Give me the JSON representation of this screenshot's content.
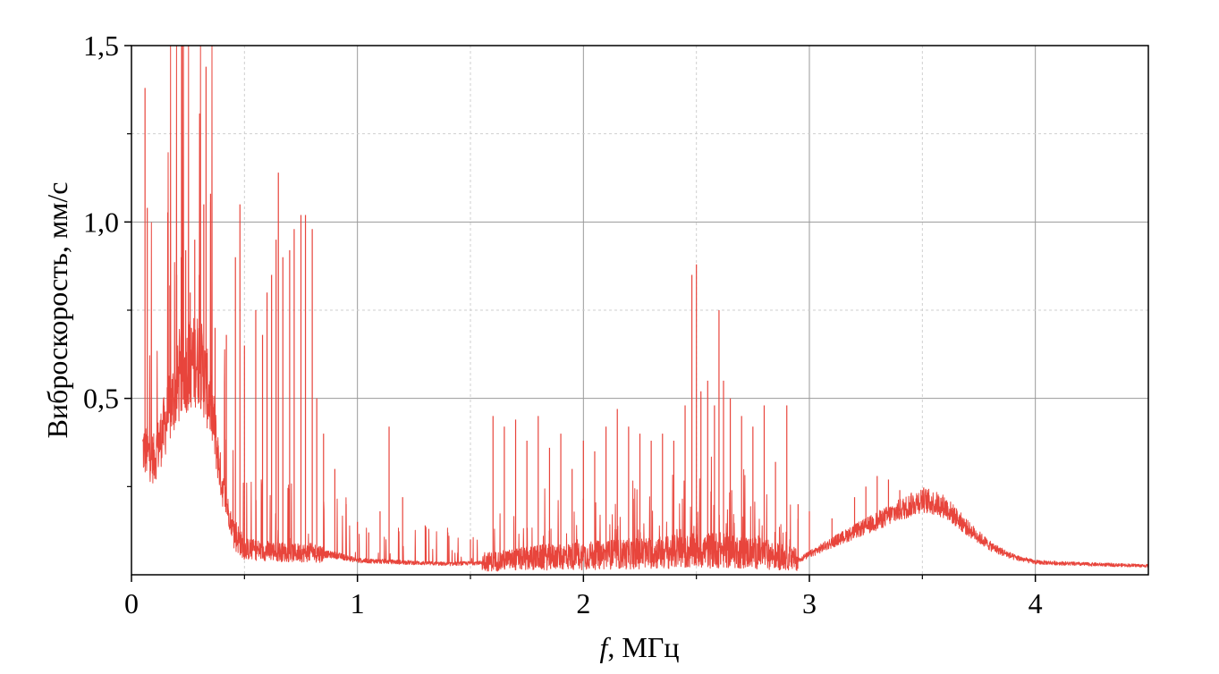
{
  "chart_data": {
    "type": "line",
    "xlabel_italic": "f",
    "xlabel_rest": ", МГц",
    "ylabel": "Виброскорость, мм/с",
    "xlim": [
      0,
      4.5
    ],
    "ylim": [
      0,
      1.5
    ],
    "x_ticks": [
      0,
      1,
      2,
      3,
      4
    ],
    "x_tick_labels": [
      "0",
      "1",
      "2",
      "3",
      "4"
    ],
    "y_ticks": [
      0.5,
      1.0,
      1.5
    ],
    "y_tick_labels": [
      "0,5",
      "1,0",
      "1,5"
    ],
    "grid": true,
    "line_color": "#e8453c",
    "envelope": {
      "x": [
        0.05,
        0.1,
        0.15,
        0.2,
        0.25,
        0.3,
        0.35,
        0.4,
        0.45,
        0.5,
        0.6,
        0.7,
        0.8,
        0.9,
        1.0,
        1.2,
        1.4,
        1.6,
        1.8,
        2.0,
        2.2,
        2.4,
        2.6,
        2.8,
        2.95,
        3.1,
        3.3,
        3.5,
        3.6,
        3.7,
        3.8,
        3.9,
        4.0,
        4.2,
        4.5
      ],
      "y": [
        0.35,
        0.32,
        0.42,
        0.52,
        0.58,
        0.6,
        0.48,
        0.25,
        0.12,
        0.07,
        0.065,
        0.06,
        0.06,
        0.055,
        0.04,
        0.035,
        0.03,
        0.035,
        0.045,
        0.05,
        0.055,
        0.06,
        0.065,
        0.055,
        0.04,
        0.09,
        0.15,
        0.21,
        0.19,
        0.13,
        0.08,
        0.05,
        0.035,
        0.03,
        0.025
      ]
    },
    "peaks": {
      "x": [
        0.06,
        0.07,
        0.17,
        0.2,
        0.22,
        0.24,
        0.26,
        0.28,
        0.3,
        0.32,
        0.33,
        0.35,
        0.37,
        0.42,
        0.46,
        0.48,
        0.5,
        0.55,
        0.58,
        0.6,
        0.62,
        0.64,
        0.65,
        0.67,
        0.7,
        0.72,
        0.75,
        0.77,
        0.8,
        0.82,
        0.85,
        0.9,
        0.95,
        1.0,
        1.05,
        1.1,
        1.14,
        1.2,
        1.3,
        1.4,
        1.5,
        1.6,
        1.65,
        1.7,
        1.75,
        1.8,
        1.85,
        1.9,
        1.95,
        2.0,
        2.05,
        2.1,
        2.15,
        2.2,
        2.25,
        2.3,
        2.35,
        2.4,
        2.45,
        2.48,
        2.5,
        2.52,
        2.55,
        2.58,
        2.6,
        2.62,
        2.65,
        2.7,
        2.75,
        2.8,
        2.85,
        2.9,
        2.95,
        3.0,
        3.1,
        3.2,
        3.25,
        3.3,
        3.35,
        3.4,
        3.45,
        3.5
      ],
      "y": [
        1.38,
        1.04,
        0.82,
        0.85,
        0.9,
        0.92,
        0.8,
        0.95,
        0.85,
        1.05,
        1.44,
        1.08,
        0.7,
        0.68,
        0.9,
        1.05,
        0.65,
        0.75,
        0.68,
        0.8,
        0.85,
        0.95,
        1.14,
        0.9,
        0.92,
        0.98,
        1.02,
        1.02,
        0.98,
        0.5,
        0.4,
        0.3,
        0.2,
        0.15,
        0.12,
        0.18,
        0.42,
        0.22,
        0.14,
        0.12,
        0.1,
        0.45,
        0.42,
        0.44,
        0.38,
        0.45,
        0.36,
        0.4,
        0.3,
        0.38,
        0.35,
        0.42,
        0.47,
        0.42,
        0.4,
        0.38,
        0.4,
        0.38,
        0.48,
        0.85,
        0.88,
        0.52,
        0.55,
        0.48,
        0.75,
        0.55,
        0.5,
        0.45,
        0.42,
        0.48,
        0.32,
        0.48,
        0.2,
        0.18,
        0.16,
        0.22,
        0.25,
        0.28,
        0.27,
        0.24,
        0.23,
        0.24
      ]
    }
  }
}
